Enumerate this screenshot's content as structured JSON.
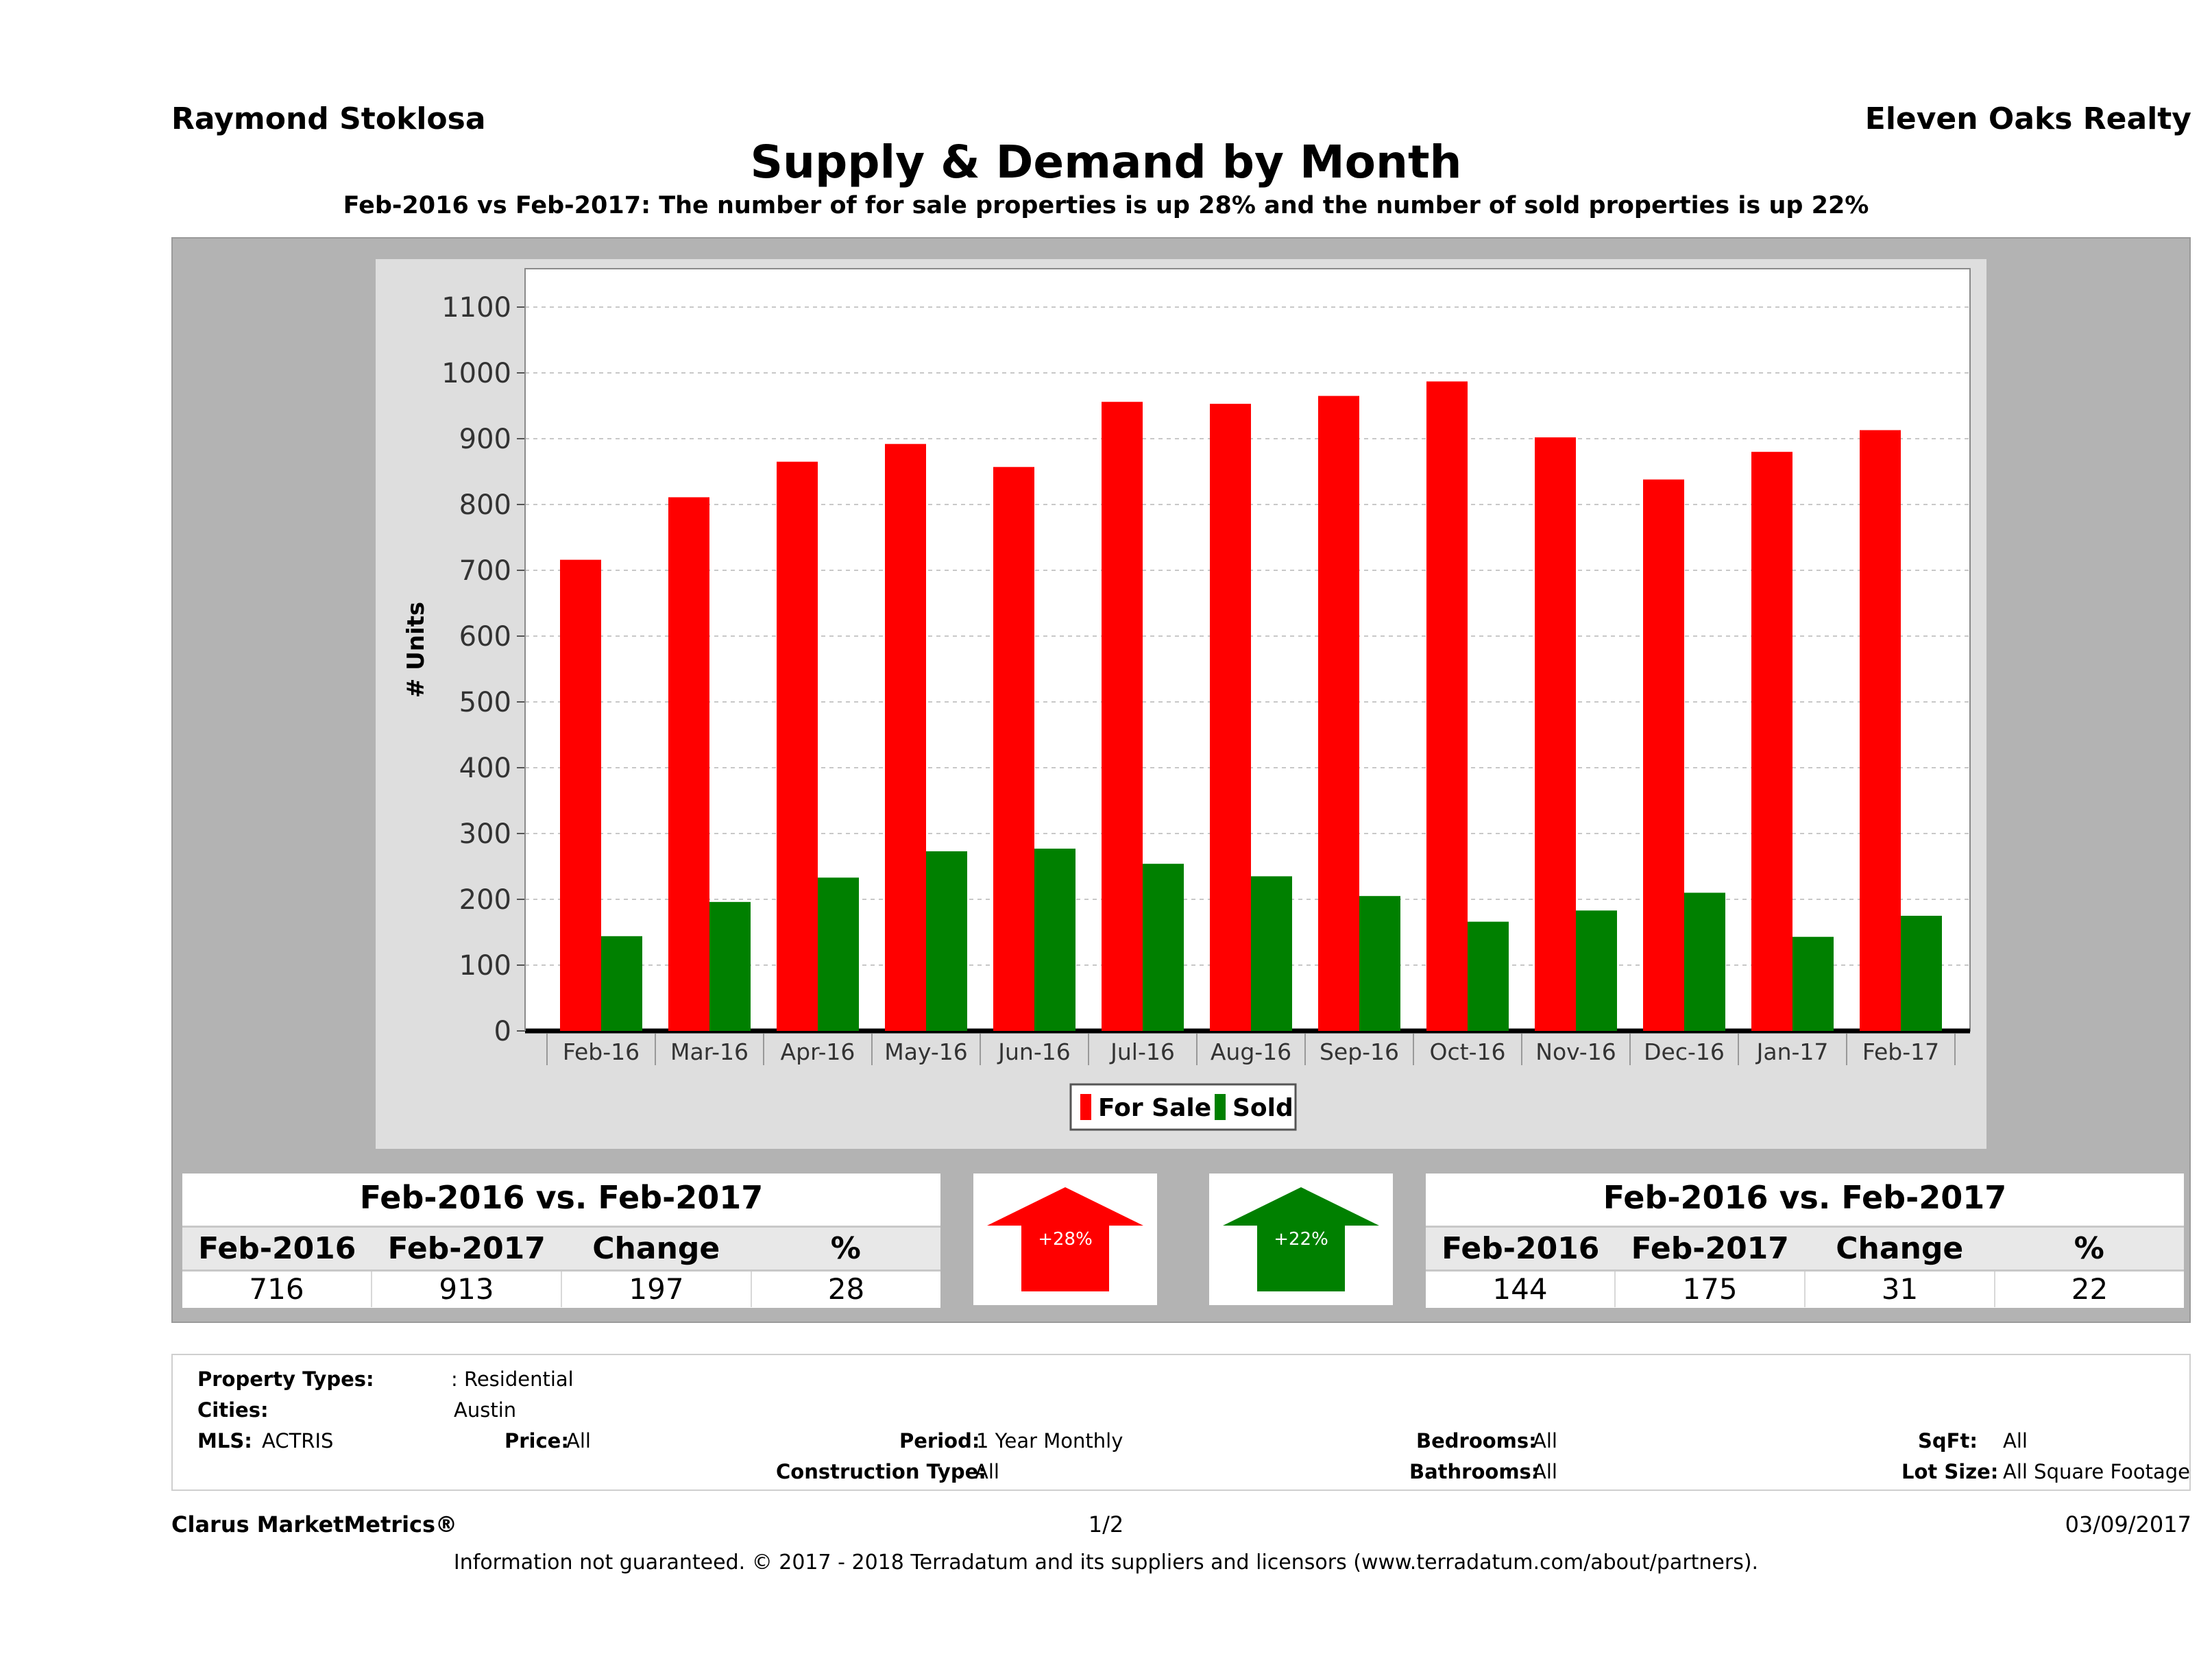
{
  "header": {
    "agent_name": "Raymond Stoklosa",
    "company": "Eleven Oaks Realty",
    "title": "Supply & Demand by Month",
    "subtitle": "Feb-2016 vs Feb-2017: The number of for sale properties is up 28% and the number of sold properties is up 22%"
  },
  "colors": {
    "for_sale": "#ff0000",
    "sold": "#008000"
  },
  "chart_data": {
    "type": "bar",
    "ylabel": "# Units",
    "ylim": [
      0,
      1100
    ],
    "yticks": [
      0,
      100,
      200,
      300,
      400,
      500,
      600,
      700,
      800,
      900,
      1000,
      1100
    ],
    "categories": [
      "Feb-16",
      "Mar-16",
      "Apr-16",
      "May-16",
      "Jun-16",
      "Jul-16",
      "Aug-16",
      "Sep-16",
      "Oct-16",
      "Nov-16",
      "Dec-16",
      "Jan-17",
      "Feb-17"
    ],
    "series": [
      {
        "name": "For Sale",
        "values": [
          716,
          811,
          865,
          892,
          857,
          956,
          953,
          965,
          987,
          902,
          838,
          880,
          913
        ]
      },
      {
        "name": "Sold",
        "values": [
          144,
          196,
          233,
          273,
          277,
          254,
          235,
          205,
          166,
          183,
          210,
          143,
          175
        ]
      }
    ],
    "legend": "bottom-center",
    "grid": true
  },
  "stats_for_sale": {
    "heading": "Feb-2016 vs. Feb-2017",
    "columns": [
      "Feb-2016",
      "Feb-2017",
      "Change",
      "%"
    ],
    "values": [
      "716",
      "913",
      "197",
      "28"
    ]
  },
  "stats_sold": {
    "heading": "Feb-2016 vs. Feb-2017",
    "columns": [
      "Feb-2016",
      "Feb-2017",
      "Change",
      "%"
    ],
    "values": [
      "144",
      "175",
      "31",
      "22"
    ]
  },
  "arrows": {
    "for_sale_label": "+28%",
    "sold_label": "+22%"
  },
  "filters": {
    "property_types_label": "Property Types:",
    "property_types_value": ": Residential",
    "cities_label": "Cities:",
    "cities_value": "Austin",
    "mls_label": "MLS:",
    "mls_value": "ACTRIS",
    "price_label": "Price:",
    "price_value": "All",
    "period_label": "Period:",
    "period_value": "1 Year Monthly",
    "bedrooms_label": "Bedrooms:",
    "bedrooms_value": "All",
    "sqft_label": "SqFt:",
    "sqft_value": "All",
    "construction_label": "Construction Type:",
    "construction_value": "All",
    "bathrooms_label": "Bathrooms:",
    "bathrooms_value": "All",
    "lot_size_label": "Lot Size:",
    "lot_size_value": "All Square Footage"
  },
  "footer": {
    "brand": "Clarus MarketMetrics®",
    "page": "1/2",
    "date": "03/09/2017",
    "disclaimer": "Information not guaranteed. © 2017 - 2018 Terradatum and its suppliers and licensors (www.terradatum.com/about/partners)."
  }
}
